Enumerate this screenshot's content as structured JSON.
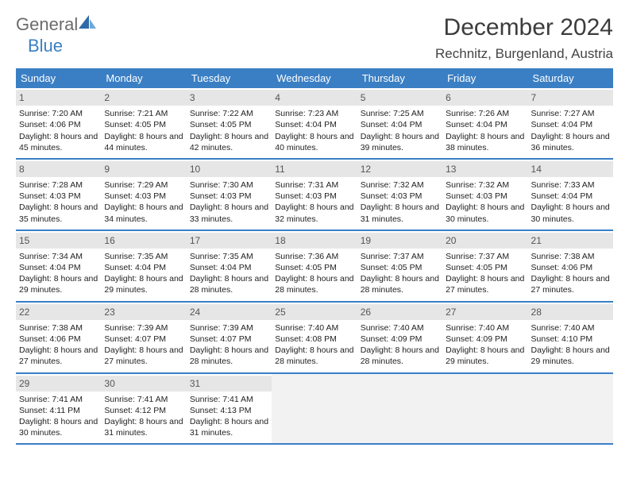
{
  "brand": {
    "word1": "General",
    "word2": "Blue"
  },
  "title": "December 2024",
  "location": "Rechnitz, Burgenland, Austria",
  "colors": {
    "accent": "#3a7fc4",
    "daynum_bg": "#e6e6e6",
    "empty_bg": "#f2f2f2",
    "text": "#222222",
    "title_text": "#3c3c3c"
  },
  "weekdays": [
    "Sunday",
    "Monday",
    "Tuesday",
    "Wednesday",
    "Thursday",
    "Friday",
    "Saturday"
  ],
  "weeks": [
    [
      {
        "n": "1",
        "sr": "7:20 AM",
        "ss": "4:06 PM",
        "dl": "8 hours and 45 minutes."
      },
      {
        "n": "2",
        "sr": "7:21 AM",
        "ss": "4:05 PM",
        "dl": "8 hours and 44 minutes."
      },
      {
        "n": "3",
        "sr": "7:22 AM",
        "ss": "4:05 PM",
        "dl": "8 hours and 42 minutes."
      },
      {
        "n": "4",
        "sr": "7:23 AM",
        "ss": "4:04 PM",
        "dl": "8 hours and 40 minutes."
      },
      {
        "n": "5",
        "sr": "7:25 AM",
        "ss": "4:04 PM",
        "dl": "8 hours and 39 minutes."
      },
      {
        "n": "6",
        "sr": "7:26 AM",
        "ss": "4:04 PM",
        "dl": "8 hours and 38 minutes."
      },
      {
        "n": "7",
        "sr": "7:27 AM",
        "ss": "4:04 PM",
        "dl": "8 hours and 36 minutes."
      }
    ],
    [
      {
        "n": "8",
        "sr": "7:28 AM",
        "ss": "4:03 PM",
        "dl": "8 hours and 35 minutes."
      },
      {
        "n": "9",
        "sr": "7:29 AM",
        "ss": "4:03 PM",
        "dl": "8 hours and 34 minutes."
      },
      {
        "n": "10",
        "sr": "7:30 AM",
        "ss": "4:03 PM",
        "dl": "8 hours and 33 minutes."
      },
      {
        "n": "11",
        "sr": "7:31 AM",
        "ss": "4:03 PM",
        "dl": "8 hours and 32 minutes."
      },
      {
        "n": "12",
        "sr": "7:32 AM",
        "ss": "4:03 PM",
        "dl": "8 hours and 31 minutes."
      },
      {
        "n": "13",
        "sr": "7:32 AM",
        "ss": "4:03 PM",
        "dl": "8 hours and 30 minutes."
      },
      {
        "n": "14",
        "sr": "7:33 AM",
        "ss": "4:04 PM",
        "dl": "8 hours and 30 minutes."
      }
    ],
    [
      {
        "n": "15",
        "sr": "7:34 AM",
        "ss": "4:04 PM",
        "dl": "8 hours and 29 minutes."
      },
      {
        "n": "16",
        "sr": "7:35 AM",
        "ss": "4:04 PM",
        "dl": "8 hours and 29 minutes."
      },
      {
        "n": "17",
        "sr": "7:35 AM",
        "ss": "4:04 PM",
        "dl": "8 hours and 28 minutes."
      },
      {
        "n": "18",
        "sr": "7:36 AM",
        "ss": "4:05 PM",
        "dl": "8 hours and 28 minutes."
      },
      {
        "n": "19",
        "sr": "7:37 AM",
        "ss": "4:05 PM",
        "dl": "8 hours and 28 minutes."
      },
      {
        "n": "20",
        "sr": "7:37 AM",
        "ss": "4:05 PM",
        "dl": "8 hours and 27 minutes."
      },
      {
        "n": "21",
        "sr": "7:38 AM",
        "ss": "4:06 PM",
        "dl": "8 hours and 27 minutes."
      }
    ],
    [
      {
        "n": "22",
        "sr": "7:38 AM",
        "ss": "4:06 PM",
        "dl": "8 hours and 27 minutes."
      },
      {
        "n": "23",
        "sr": "7:39 AM",
        "ss": "4:07 PM",
        "dl": "8 hours and 27 minutes."
      },
      {
        "n": "24",
        "sr": "7:39 AM",
        "ss": "4:07 PM",
        "dl": "8 hours and 28 minutes."
      },
      {
        "n": "25",
        "sr": "7:40 AM",
        "ss": "4:08 PM",
        "dl": "8 hours and 28 minutes."
      },
      {
        "n": "26",
        "sr": "7:40 AM",
        "ss": "4:09 PM",
        "dl": "8 hours and 28 minutes."
      },
      {
        "n": "27",
        "sr": "7:40 AM",
        "ss": "4:09 PM",
        "dl": "8 hours and 29 minutes."
      },
      {
        "n": "28",
        "sr": "7:40 AM",
        "ss": "4:10 PM",
        "dl": "8 hours and 29 minutes."
      }
    ],
    [
      {
        "n": "29",
        "sr": "7:41 AM",
        "ss": "4:11 PM",
        "dl": "8 hours and 30 minutes."
      },
      {
        "n": "30",
        "sr": "7:41 AM",
        "ss": "4:12 PM",
        "dl": "8 hours and 31 minutes."
      },
      {
        "n": "31",
        "sr": "7:41 AM",
        "ss": "4:13 PM",
        "dl": "8 hours and 31 minutes."
      },
      {
        "empty": true
      },
      {
        "empty": true
      },
      {
        "empty": true
      },
      {
        "empty": true
      }
    ]
  ],
  "labels": {
    "sunrise_prefix": "Sunrise: ",
    "sunset_prefix": "Sunset: ",
    "daylight_prefix": "Daylight: "
  }
}
